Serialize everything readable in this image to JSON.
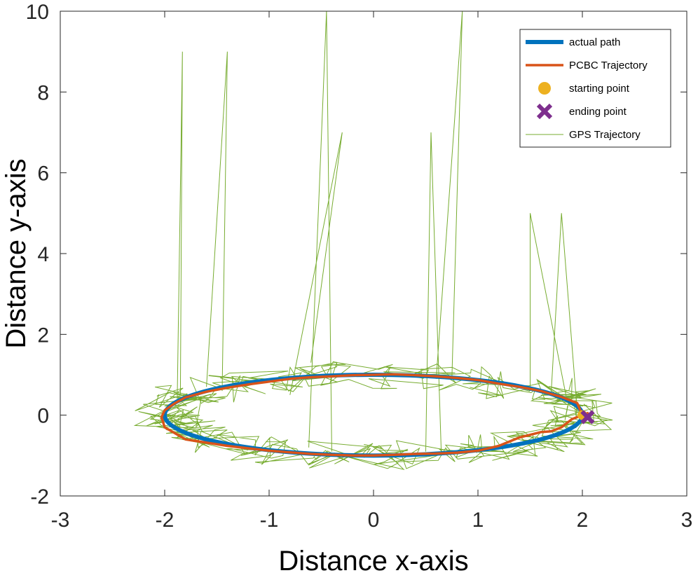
{
  "chart_data": {
    "type": "line",
    "title": "",
    "xlabel": "Distance x-axis",
    "ylabel": "Distance y-axis",
    "xlim": [
      -3,
      3
    ],
    "ylim": [
      -2,
      10
    ],
    "xticks": [
      "-3",
      "-2",
      "-1",
      "0",
      "1",
      "2",
      "3"
    ],
    "yticks": [
      "-2",
      "0",
      "2",
      "4",
      "6",
      "8",
      "10"
    ],
    "grid": false,
    "legend_position": "top-right",
    "legend": [
      {
        "label": "actual path",
        "symbol": "line",
        "color": "#0072BD"
      },
      {
        "label": "PCBC Trajectory",
        "symbol": "line",
        "color": "#D95319"
      },
      {
        "label": "starting point",
        "symbol": "circle",
        "color": "#EDB120"
      },
      {
        "label": "ending point",
        "symbol": "x",
        "color": "#7E2F8E"
      },
      {
        "label": "GPS Trajectory",
        "symbol": "line",
        "color": "#77AC30"
      }
    ],
    "series": [
      {
        "name": "actual path",
        "color": "#0072BD",
        "shape": "ellipse",
        "center": [
          0,
          0
        ],
        "semi_axes": [
          2,
          1
        ]
      },
      {
        "name": "PCBC Trajectory",
        "color": "#D95319",
        "x": [
          2.0,
          1.95,
          1.8,
          1.6,
          1.4,
          1.2,
          1.0,
          0.8,
          0.6,
          0.4,
          0.2,
          0.0,
          -0.2,
          -0.4,
          -0.6,
          -0.8,
          -1.0,
          -1.2,
          -1.4,
          -1.6,
          -1.8,
          -1.9,
          -2.0,
          -2.03,
          -2.0,
          -1.9,
          -1.8,
          -1.6,
          -1.4,
          -1.2,
          -1.0,
          -0.8,
          -0.6,
          -0.4,
          -0.2,
          0.0,
          0.2,
          0.4,
          0.6,
          0.8,
          1.0,
          1.2,
          1.4,
          1.6,
          1.7,
          1.8,
          1.9,
          2.05,
          2.0
        ],
        "y": [
          0.0,
          0.3,
          0.45,
          0.6,
          0.7,
          0.78,
          0.87,
          0.92,
          0.96,
          0.99,
          1.01,
          1.0,
          0.99,
          0.96,
          0.94,
          0.9,
          0.83,
          0.76,
          0.68,
          0.58,
          0.44,
          0.3,
          0.12,
          -0.05,
          -0.3,
          -0.45,
          -0.6,
          -0.68,
          -0.76,
          -0.82,
          -0.88,
          -0.92,
          -0.96,
          -0.98,
          -1.0,
          -1.0,
          -0.98,
          -0.96,
          -0.95,
          -0.93,
          -0.88,
          -0.76,
          -0.55,
          -0.42,
          -0.4,
          -0.3,
          -0.1,
          0.05,
          0.0
        ]
      },
      {
        "name": "starting point",
        "color": "#EDB120",
        "x": [
          2.0
        ],
        "y": [
          0.0
        ]
      },
      {
        "name": "ending point",
        "color": "#7E2F8E",
        "x": [
          2.05
        ],
        "y": [
          -0.05
        ]
      },
      {
        "name": "GPS Trajectory",
        "color": "#77AC30",
        "noisy_points_per_loop": 200,
        "noise_amplitude": 0.35,
        "outlier_spikes": [
          {
            "x": -1.88,
            "y": 0.4
          },
          {
            "x": -1.83,
            "y": 9.0
          },
          {
            "x": -1.85,
            "y": 0.5
          },
          {
            "x": -1.45,
            "y": 0.6
          },
          {
            "x": -1.4,
            "y": 9.0
          },
          {
            "x": -1.6,
            "y": 0.7
          },
          {
            "x": -0.62,
            "y": -0.8
          },
          {
            "x": -0.45,
            "y": 10.0
          },
          {
            "x": -0.4,
            "y": -0.9
          },
          {
            "x": -0.6,
            "y": 1.3
          },
          {
            "x": -0.3,
            "y": 7.0
          },
          {
            "x": -0.8,
            "y": 0.5
          },
          {
            "x": 0.5,
            "y": -0.9
          },
          {
            "x": 0.55,
            "y": 7.0
          },
          {
            "x": 0.65,
            "y": -1.0
          },
          {
            "x": 0.6,
            "y": 0.9
          },
          {
            "x": 0.85,
            "y": 10.0
          },
          {
            "x": 0.75,
            "y": 0.9
          },
          {
            "x": 1.5,
            "y": 0.6
          },
          {
            "x": 1.5,
            "y": 5.0
          },
          {
            "x": 1.85,
            "y": 0.4
          },
          {
            "x": 1.7,
            "y": 0.5
          },
          {
            "x": 1.8,
            "y": 5.0
          },
          {
            "x": 1.95,
            "y": 0.1
          }
        ]
      }
    ]
  }
}
